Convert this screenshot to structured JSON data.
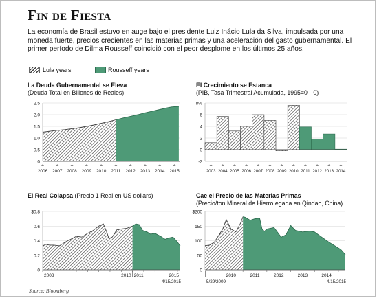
{
  "header": {
    "title": "Fin de Fiesta",
    "intro": "La economía de Brasil estuvo en auge bajo el presidente Luiz Inácio Lula da Silva, impulsada por una moneda fuerte, precios crecientes en las materias primas y una aceleración del gasto gubernamental. El primer período de Dilma Rousseff coincidió con el peor desplome en los últimos 25 años."
  },
  "legend": {
    "lula": "Lula years",
    "rousseff": "Rousseff years"
  },
  "colors": {
    "rousseff_fill": "#4e9a77",
    "lula_hatch": "#3d3d3d",
    "axis": "#444444"
  },
  "source": "Source: Bloomberg",
  "chart_data": [
    {
      "id": "debt",
      "type": "area",
      "title_bold": "La Deuda Gubernamental se Eleva",
      "subtitle": "(Deuda Total en Billones de Reales)",
      "ylim": [
        0,
        2.5
      ],
      "yticks": [
        "0",
        "0.5",
        "1.0",
        "1.5",
        "2.0",
        "2.5"
      ],
      "xticks": [
        "2006",
        "2007",
        "2008",
        "2009",
        "2010",
        "2011",
        "2012",
        "2013",
        "2014",
        "2015"
      ],
      "xlim": [
        2006,
        2015.4
      ],
      "rousseff_start": 2011,
      "x": [
        2006,
        2006.5,
        2007,
        2007.5,
        2008,
        2008.5,
        2009,
        2009.5,
        2010,
        2010.5,
        2011,
        2011.5,
        2012,
        2012.5,
        2013,
        2013.5,
        2014,
        2014.5,
        2014.8,
        2015,
        2015.3
      ],
      "y": [
        1.25,
        1.29,
        1.33,
        1.36,
        1.4,
        1.44,
        1.5,
        1.56,
        1.63,
        1.7,
        1.78,
        1.86,
        1.93,
        2.0,
        2.08,
        2.15,
        2.22,
        2.29,
        2.33,
        2.34,
        2.35
      ],
      "grid": true
    },
    {
      "id": "gdp",
      "type": "bar",
      "title_bold": "El Crecimiento se Estanca",
      "subtitle": "(PIB, Tasa Trimestral Acumulada, 1995=0",
      "subtitle_tail": "0)",
      "ylim": [
        -2,
        8
      ],
      "yticks": [
        "-2",
        "0",
        "2",
        "4",
        "6",
        "8%"
      ],
      "categories": [
        "2003",
        "2004",
        "2005",
        "2006",
        "2007",
        "2008",
        "2009",
        "2010",
        "2011",
        "2012",
        "2013",
        "2014"
      ],
      "values": [
        1.2,
        5.7,
        3.2,
        4.0,
        6.0,
        5.0,
        -0.2,
        7.6,
        3.9,
        1.8,
        2.7,
        0.1
      ],
      "rousseff_start": "2011",
      "grid": true
    },
    {
      "id": "real",
      "type": "area",
      "title_bold": "El Real Colapsa",
      "subtitle": "(Precio 1 Real en US dollars)",
      "ylim": [
        0,
        0.8
      ],
      "yticks": [
        "0",
        "0.2",
        "0.4",
        "0.6",
        "$0.8"
      ],
      "xticks": [
        "2003",
        "2010",
        "2011",
        "2015"
      ],
      "xlim": [
        2003,
        2015.25
      ],
      "rousseff_start": 2011,
      "x": [
        2003,
        2003.3,
        2003.6,
        2004,
        2004.5,
        2005,
        2005.5,
        2006,
        2006.5,
        2007,
        2007.5,
        2008,
        2008.4,
        2008.7,
        2008.9,
        2009.2,
        2009.6,
        2010,
        2010.5,
        2011,
        2011.3,
        2011.6,
        2011.9,
        2012.3,
        2012.6,
        2013,
        2013.5,
        2013.9,
        2014.3,
        2014.6,
        2014.9,
        2015.1,
        2015.25
      ],
      "y": [
        0.33,
        0.35,
        0.34,
        0.34,
        0.33,
        0.38,
        0.42,
        0.46,
        0.45,
        0.5,
        0.54,
        0.6,
        0.63,
        0.52,
        0.43,
        0.45,
        0.55,
        0.56,
        0.57,
        0.6,
        0.63,
        0.62,
        0.54,
        0.52,
        0.49,
        0.5,
        0.46,
        0.42,
        0.44,
        0.45,
        0.4,
        0.36,
        0.33
      ],
      "end_label": "4/15/2015",
      "grid": true
    },
    {
      "id": "iron",
      "type": "area",
      "title_bold": "Cae el Precio de las Materias Primas",
      "subtitle": "(Precio/ton Mineral de Hierro egada en Qindao, China)",
      "ylim": [
        0,
        200
      ],
      "yticks": [
        "0",
        "50",
        "100",
        "150",
        "$200"
      ],
      "xticks": [
        "2010",
        "2011",
        "2012",
        "2013",
        "2014"
      ],
      "xlim": [
        2009.41,
        2015.29
      ],
      "rousseff_start": 2011,
      "x": [
        2009.41,
        2009.6,
        2009.8,
        2010,
        2010.15,
        2010.3,
        2010.5,
        2010.7,
        2010.9,
        2011,
        2011.1,
        2011.3,
        2011.5,
        2011.7,
        2011.8,
        2011.9,
        2012,
        2012.3,
        2012.6,
        2012.8,
        2013,
        2013.2,
        2013.5,
        2013.8,
        2014,
        2014.3,
        2014.6,
        2014.9,
        2015.1,
        2015.29
      ],
      "y": [
        83,
        85,
        95,
        120,
        140,
        172,
        140,
        130,
        160,
        182,
        180,
        170,
        175,
        177,
        140,
        132,
        140,
        145,
        112,
        120,
        152,
        135,
        130,
        133,
        130,
        112,
        95,
        80,
        70,
        52
      ],
      "start_label": "5/29/2009",
      "end_label": "4/15/2015",
      "grid": true
    }
  ]
}
